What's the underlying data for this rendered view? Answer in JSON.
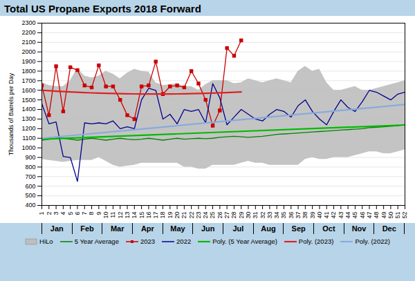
{
  "chart_data": {
    "type": "line",
    "title": "Total US Propane Exports 2018 Forward",
    "ylabel": "Thousands of Barrels per Day",
    "x": [
      1,
      2,
      3,
      4,
      5,
      6,
      7,
      8,
      9,
      10,
      11,
      12,
      13,
      14,
      15,
      16,
      17,
      18,
      19,
      20,
      21,
      22,
      23,
      24,
      25,
      26,
      27,
      28,
      29,
      30,
      31,
      32,
      33,
      34,
      35,
      36,
      37,
      38,
      39,
      40,
      41,
      42,
      43,
      44,
      45,
      46,
      47,
      48,
      49,
      50,
      51,
      52
    ],
    "xlim": [
      1,
      52
    ],
    "xticks": [
      1,
      2,
      3,
      4,
      5,
      6,
      7,
      8,
      9,
      10,
      11,
      12,
      13,
      14,
      15,
      16,
      17,
      18,
      19,
      20,
      21,
      22,
      23,
      24,
      25,
      26,
      27,
      28,
      29,
      30,
      31,
      32,
      33,
      34,
      35,
      36,
      37,
      38,
      39,
      40,
      41,
      42,
      43,
      44,
      45,
      46,
      47,
      48,
      49,
      50,
      51,
      52
    ],
    "ylim": [
      400,
      2300
    ],
    "yticks": [
      400,
      500,
      600,
      700,
      800,
      900,
      1000,
      1100,
      1200,
      1300,
      1400,
      1500,
      1600,
      1700,
      1800,
      1900,
      2000,
      2100,
      2200,
      2300
    ],
    "grid": true,
    "legend": "bottom",
    "annotations": [
      {
        "text": "Jan"
      },
      {
        "text": "Feb"
      },
      {
        "text": "Mar"
      },
      {
        "text": "Apr"
      },
      {
        "text": "May"
      },
      {
        "text": "Jun"
      },
      {
        "text": "Jul"
      },
      {
        "text": "Aug"
      },
      {
        "text": "Sep"
      },
      {
        "text": "Oct"
      },
      {
        "text": "Nov"
      },
      {
        "text": "Dec"
      }
    ],
    "series": [
      {
        "name": "HiLo",
        "type": "area",
        "color": "#bebebe",
        "values": [
          1680,
          1650,
          1640,
          1640,
          1700,
          1830,
          1750,
          1730,
          1750,
          1800,
          1770,
          1720,
          1780,
          1820,
          1800,
          1790,
          1680,
          1650,
          1660,
          1670,
          1640,
          1640,
          1600,
          1660,
          1700,
          1700,
          1700,
          1670,
          1680,
          1720,
          1700,
          1680,
          1700,
          1720,
          1700,
          1680,
          1800,
          1850,
          1800,
          1820,
          1680,
          1600,
          1600,
          1620,
          1640,
          1600,
          1600,
          1620,
          1640,
          1660,
          1680,
          1700
        ],
        "low": [
          880,
          870,
          860,
          850,
          860,
          870,
          870,
          870,
          900,
          860,
          820,
          800,
          810,
          820,
          840,
          840,
          840,
          840,
          840,
          840,
          800,
          800,
          780,
          780,
          820,
          820,
          820,
          820,
          840,
          860,
          840,
          840,
          820,
          820,
          820,
          820,
          820,
          880,
          900,
          880,
          880,
          900,
          900,
          900,
          920,
          940,
          960,
          960,
          940,
          940,
          960,
          980
        ]
      },
      {
        "name": "5 Year Average",
        "type": "line",
        "color": "#008000",
        "values": [
          1080,
          1090,
          1100,
          1100,
          1090,
          1080,
          1090,
          1100,
          1090,
          1080,
          1090,
          1100,
          1090,
          1085,
          1090,
          1100,
          1090,
          1080,
          1090,
          1100,
          1090,
          1095,
          1100,
          1095,
          1100,
          1110,
          1115,
          1120,
          1115,
          1110,
          1115,
          1120,
          1130,
          1140,
          1145,
          1150,
          1155,
          1160,
          1165,
          1170,
          1175,
          1180,
          1185,
          1190,
          1195,
          1200,
          1210,
          1215,
          1220,
          1225,
          1230,
          1240
        ]
      },
      {
        "name": "2023",
        "type": "line",
        "color": "#cc0000",
        "marker": "square",
        "values": [
          1650,
          1340,
          1850,
          1380,
          1840,
          1810,
          1650,
          1630,
          1860,
          1640,
          1640,
          1500,
          1340,
          1300,
          1640,
          1650,
          1900,
          1560,
          1640,
          1650,
          1630,
          1800,
          1670,
          1500,
          1230,
          1390,
          2040,
          1960,
          2120,
          null,
          null,
          null,
          null,
          null,
          null,
          null,
          null,
          null,
          null,
          null,
          null,
          null,
          null,
          null,
          null,
          null,
          null,
          null,
          null,
          null,
          null,
          null
        ]
      },
      {
        "name": "2022",
        "type": "line",
        "color": "#00008b",
        "values": [
          1460,
          1250,
          1270,
          910,
          900,
          650,
          1260,
          1250,
          1260,
          1250,
          1280,
          1200,
          1220,
          1200,
          1500,
          1620,
          1600,
          1300,
          1350,
          1250,
          1400,
          1380,
          1400,
          1260,
          1670,
          1520,
          1240,
          1320,
          1400,
          1350,
          1300,
          1280,
          1350,
          1400,
          1380,
          1320,
          1440,
          1500,
          1380,
          1300,
          1240,
          1380,
          1500,
          1420,
          1380,
          1480,
          1600,
          1580,
          1540,
          1500,
          1560,
          1580
        ]
      },
      {
        "name": "Poly. (5 Year Average)",
        "type": "line",
        "color": "#00bb00",
        "x": [
          1,
          52
        ],
        "values": [
          1090,
          1238.5
        ]
      },
      {
        "name": "Poly. (2023)",
        "type": "line",
        "color": "#dd2222",
        "x": [
          1,
          2,
          3,
          4,
          5,
          6,
          7,
          8,
          9,
          10,
          11,
          12,
          13,
          14,
          15,
          16,
          17,
          18,
          19,
          20,
          21,
          22,
          23,
          24,
          25,
          26,
          27,
          28,
          29
        ],
        "values": [
          1600,
          1595.3,
          1590.8,
          1586.7,
          1582.9,
          1579.3,
          1576.1,
          1573.2,
          1570.6,
          1568.3,
          1566.4,
          1564.7,
          1563.3,
          1562.3,
          1561.5,
          1561.1,
          1560.9,
          1561.1,
          1561.6,
          1562.4,
          1563.5,
          1564.9,
          1566.6,
          1568.6,
          1570.9,
          1573.6,
          1576.5,
          1579.8,
          1583.3
        ]
      },
      {
        "name": "Poly. (2022)",
        "type": "line",
        "color": "#88aadd",
        "x": [
          1,
          52
        ],
        "values": [
          1100,
          1452
        ]
      }
    ]
  }
}
